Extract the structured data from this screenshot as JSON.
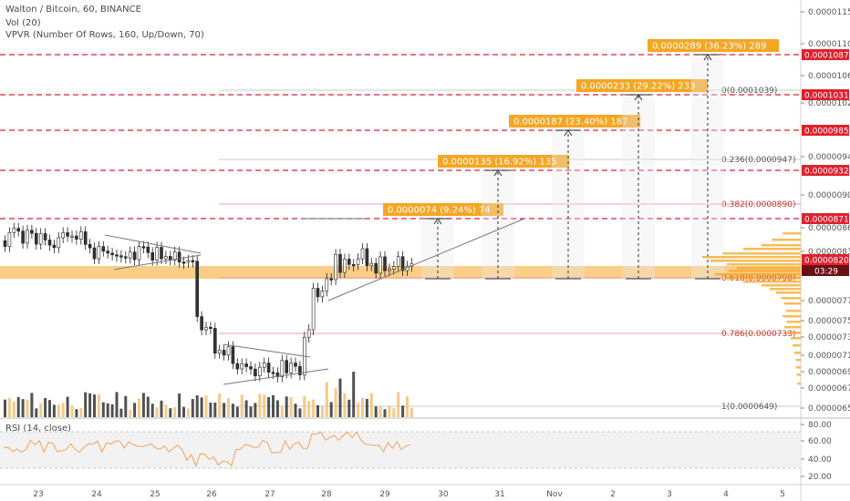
{
  "header": {
    "symbol_line": "Walton / Bitcoin, 60, BINANCE",
    "vol_line": "Vol (20)",
    "vpvr_line": "VPVR (Number Of Rows, 160, Up/Down, 70)"
  },
  "rsi": {
    "label": "RSI (14, close)",
    "ticks": [
      "80.00",
      "60.00",
      "40.00",
      "20.00"
    ]
  },
  "price_axis": {
    "ticks": [
      "0.0000115",
      "0.0000110",
      "0.0000106",
      "0.0000102",
      "0.0000094",
      "0.0000090",
      "0.0000086",
      "0.0000083",
      "0.0000077",
      "0.0000075",
      "0.0000073",
      "0.0000071",
      "0.0000069",
      "0.0000067",
      "0.0000065"
    ],
    "price_tags": [
      {
        "label": "0.0001087",
        "color": "#e0212e"
      },
      {
        "label": "0.0001031",
        "color": "#e0212e"
      },
      {
        "label": "0.0000985",
        "color": "#e0212e"
      },
      {
        "label": "0.0000932",
        "color": "#e0212e"
      },
      {
        "label": "0.0000871",
        "color": "#e0212e"
      },
      {
        "label": "0.0000820",
        "color": "#e0212e"
      }
    ],
    "countdown": "03:29"
  },
  "time_axis": {
    "labels": [
      "23",
      "24",
      "25",
      "26",
      "27",
      "28",
      "29",
      "30",
      "31",
      "Nov",
      "2",
      "3",
      "4",
      "5"
    ]
  },
  "targets": [
    {
      "label": "0.0000074 (9.24%) 74"
    },
    {
      "label": "0.0000135 (16.92%) 135"
    },
    {
      "label": "0.0000187 (23.40%) 187"
    },
    {
      "label": "0.0000233 (29.22%) 233"
    },
    {
      "label": "0.0000289 (36.23%) 289"
    }
  ],
  "fib_levels": [
    {
      "label": "0(0.0001039)",
      "color": "#555555"
    },
    {
      "label": "0.236(0.0000947)",
      "color": "#555555"
    },
    {
      "label": "0.382(0.0000890)",
      "color": "#c0392b"
    },
    {
      "label": "0.618(0.0000798)",
      "color": "#c0392b"
    },
    {
      "label": "0.786(0.0000733)",
      "color": "#c0392b"
    },
    {
      "label": "1(0.0000649)",
      "color": "#555555"
    }
  ],
  "colors": {
    "accent": "#f5a623",
    "red": "#e0212e",
    "text": "#4a4a4a"
  }
}
